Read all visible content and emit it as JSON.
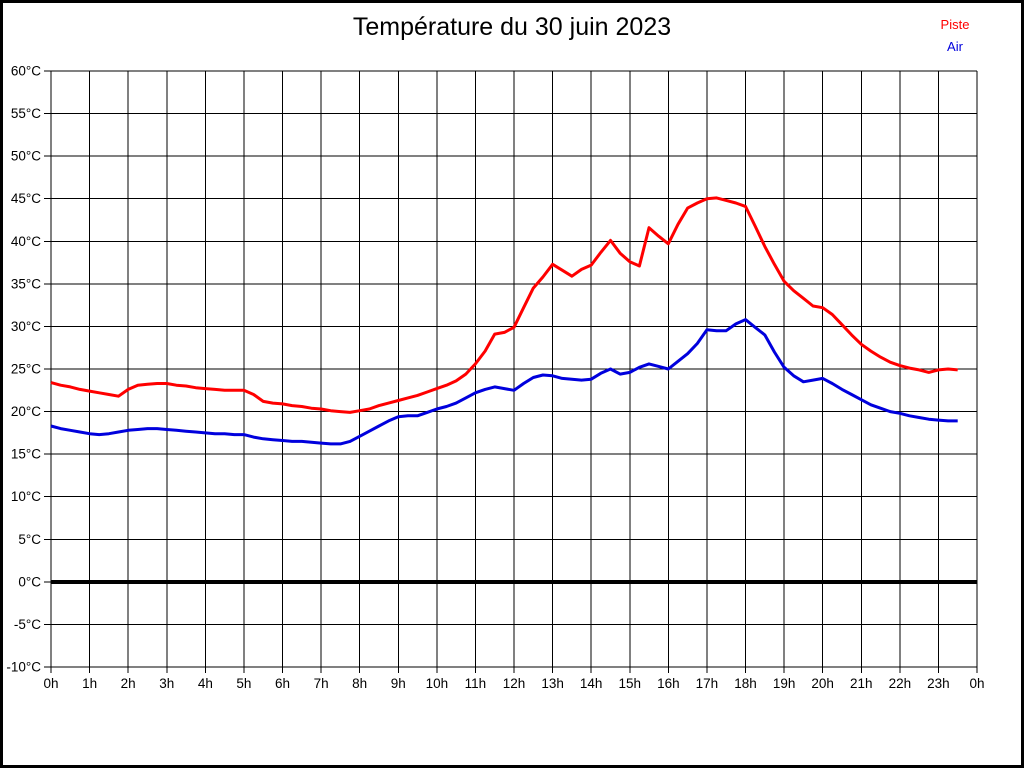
{
  "page": {
    "background": "#ffffff",
    "frame_color": "#000000"
  },
  "header": {
    "title": "Température du 30 juin 2023"
  },
  "legend": {
    "items": [
      {
        "label": "Piste",
        "color": "#ff0000"
      },
      {
        "label": "Air",
        "color": "#0000dd"
      }
    ]
  },
  "chart_data": {
    "type": "line",
    "title": "Température du 30 juin 2023",
    "xlabel": "",
    "ylabel": "",
    "grid": true,
    "legend_position": "top-right",
    "x_axis": {
      "unit": "h",
      "min": 0,
      "max": 24,
      "tick_step": 1,
      "tick_labels": [
        "0h",
        "1h",
        "2h",
        "3h",
        "4h",
        "5h",
        "6h",
        "7h",
        "8h",
        "9h",
        "10h",
        "11h",
        "12h",
        "13h",
        "14h",
        "15h",
        "16h",
        "17h",
        "18h",
        "19h",
        "20h",
        "21h",
        "22h",
        "23h",
        "0h"
      ]
    },
    "y_axis": {
      "unit": "°C",
      "min": -10,
      "max": 60,
      "tick_step": 5,
      "zero_line_bold": true,
      "tick_labels": [
        "60°C",
        "55°C",
        "50°C",
        "45°C",
        "40°C",
        "35°C",
        "30°C",
        "25°C",
        "20°C",
        "15°C",
        "10°C",
        "5°C",
        "0°C",
        "-5°C",
        "-10°C"
      ]
    },
    "series": [
      {
        "name": "Piste",
        "color": "#ff0000",
        "points": [
          [
            0,
            23.4
          ],
          [
            0.25,
            23.1
          ],
          [
            0.5,
            22.9
          ],
          [
            0.75,
            22.6
          ],
          [
            1,
            22.4
          ],
          [
            1.25,
            22.2
          ],
          [
            1.5,
            22
          ],
          [
            1.75,
            21.8
          ],
          [
            2,
            22.6
          ],
          [
            2.25,
            23.1
          ],
          [
            2.5,
            23.2
          ],
          [
            2.75,
            23.3
          ],
          [
            3,
            23.3
          ],
          [
            3.25,
            23.1
          ],
          [
            3.5,
            23
          ],
          [
            3.75,
            22.8
          ],
          [
            4,
            22.7
          ],
          [
            4.25,
            22.6
          ],
          [
            4.5,
            22.5
          ],
          [
            4.75,
            22.5
          ],
          [
            5,
            22.5
          ],
          [
            5.25,
            22
          ],
          [
            5.5,
            21.2
          ],
          [
            5.75,
            21
          ],
          [
            6,
            20.9
          ],
          [
            6.25,
            20.7
          ],
          [
            6.5,
            20.6
          ],
          [
            6.75,
            20.4
          ],
          [
            7,
            20.3
          ],
          [
            7.25,
            20.1
          ],
          [
            7.5,
            20
          ],
          [
            7.75,
            19.9
          ],
          [
            8,
            20.1
          ],
          [
            8.25,
            20.3
          ],
          [
            8.5,
            20.7
          ],
          [
            8.75,
            21
          ],
          [
            9,
            21.3
          ],
          [
            9.25,
            21.6
          ],
          [
            9.5,
            21.9
          ],
          [
            9.75,
            22.3
          ],
          [
            10,
            22.7
          ],
          [
            10.25,
            23.1
          ],
          [
            10.5,
            23.6
          ],
          [
            10.75,
            24.4
          ],
          [
            11,
            25.6
          ],
          [
            11.25,
            27.1
          ],
          [
            11.5,
            29.1
          ],
          [
            11.75,
            29.3
          ],
          [
            12,
            29.9
          ],
          [
            12.25,
            32.2
          ],
          [
            12.5,
            34.5
          ],
          [
            12.75,
            35.8
          ],
          [
            13,
            37.3
          ],
          [
            13.25,
            36.6
          ],
          [
            13.5,
            35.9
          ],
          [
            13.75,
            36.7
          ],
          [
            14,
            37.2
          ],
          [
            14.25,
            38.7
          ],
          [
            14.5,
            40.1
          ],
          [
            14.75,
            38.6
          ],
          [
            15,
            37.6
          ],
          [
            15.25,
            37.1
          ],
          [
            15.5,
            41.6
          ],
          [
            15.75,
            40.6
          ],
          [
            16,
            39.7
          ],
          [
            16.25,
            42
          ],
          [
            16.5,
            43.9
          ],
          [
            16.75,
            44.5
          ],
          [
            17,
            45
          ],
          [
            17.25,
            45.1
          ],
          [
            17.5,
            44.8
          ],
          [
            17.75,
            44.5
          ],
          [
            18,
            44.1
          ],
          [
            18.25,
            41.8
          ],
          [
            18.5,
            39.4
          ],
          [
            18.75,
            37.3
          ],
          [
            19,
            35.3
          ],
          [
            19.25,
            34.2
          ],
          [
            19.5,
            33.3
          ],
          [
            19.75,
            32.4
          ],
          [
            20,
            32.2
          ],
          [
            20.25,
            31.4
          ],
          [
            20.5,
            30.2
          ],
          [
            20.75,
            29
          ],
          [
            21,
            27.9
          ],
          [
            21.25,
            27.1
          ],
          [
            21.5,
            26.4
          ],
          [
            21.75,
            25.8
          ],
          [
            22,
            25.4
          ],
          [
            22.25,
            25.1
          ],
          [
            22.5,
            24.9
          ],
          [
            22.75,
            24.6
          ],
          [
            23,
            24.9
          ],
          [
            23.25,
            25
          ],
          [
            23.5,
            24.9
          ]
        ]
      },
      {
        "name": "Air",
        "color": "#0000dd",
        "points": [
          [
            0,
            18.3
          ],
          [
            0.25,
            18
          ],
          [
            0.5,
            17.8
          ],
          [
            0.75,
            17.6
          ],
          [
            1,
            17.4
          ],
          [
            1.25,
            17.3
          ],
          [
            1.5,
            17.4
          ],
          [
            1.75,
            17.6
          ],
          [
            2,
            17.8
          ],
          [
            2.25,
            17.9
          ],
          [
            2.5,
            18
          ],
          [
            2.75,
            18
          ],
          [
            3,
            17.9
          ],
          [
            3.25,
            17.8
          ],
          [
            3.5,
            17.7
          ],
          [
            3.75,
            17.6
          ],
          [
            4,
            17.5
          ],
          [
            4.25,
            17.4
          ],
          [
            4.5,
            17.4
          ],
          [
            4.75,
            17.3
          ],
          [
            5,
            17.3
          ],
          [
            5.25,
            17
          ],
          [
            5.5,
            16.8
          ],
          [
            5.75,
            16.7
          ],
          [
            6,
            16.6
          ],
          [
            6.25,
            16.5
          ],
          [
            6.5,
            16.5
          ],
          [
            6.75,
            16.4
          ],
          [
            7,
            16.3
          ],
          [
            7.25,
            16.2
          ],
          [
            7.5,
            16.2
          ],
          [
            7.75,
            16.5
          ],
          [
            8,
            17.1
          ],
          [
            8.25,
            17.7
          ],
          [
            8.5,
            18.3
          ],
          [
            8.75,
            18.9
          ],
          [
            9,
            19.4
          ],
          [
            9.25,
            19.5
          ],
          [
            9.5,
            19.5
          ],
          [
            9.75,
            19.9
          ],
          [
            10,
            20.3
          ],
          [
            10.25,
            20.6
          ],
          [
            10.5,
            21
          ],
          [
            10.75,
            21.6
          ],
          [
            11,
            22.2
          ],
          [
            11.25,
            22.6
          ],
          [
            11.5,
            22.9
          ],
          [
            11.75,
            22.7
          ],
          [
            12,
            22.5
          ],
          [
            12.25,
            23.3
          ],
          [
            12.5,
            24
          ],
          [
            12.75,
            24.3
          ],
          [
            13,
            24.2
          ],
          [
            13.25,
            23.9
          ],
          [
            13.5,
            23.8
          ],
          [
            13.75,
            23.7
          ],
          [
            14,
            23.8
          ],
          [
            14.25,
            24.5
          ],
          [
            14.5,
            25
          ],
          [
            14.75,
            24.4
          ],
          [
            15,
            24.6
          ],
          [
            15.25,
            25.2
          ],
          [
            15.5,
            25.6
          ],
          [
            15.75,
            25.3
          ],
          [
            16,
            25
          ],
          [
            16.25,
            25.9
          ],
          [
            16.5,
            26.8
          ],
          [
            16.75,
            28
          ],
          [
            17,
            29.6
          ],
          [
            17.25,
            29.5
          ],
          [
            17.5,
            29.5
          ],
          [
            17.75,
            30.3
          ],
          [
            18,
            30.8
          ],
          [
            18.25,
            29.9
          ],
          [
            18.5,
            29
          ],
          [
            18.75,
            27
          ],
          [
            19,
            25.2
          ],
          [
            19.25,
            24.2
          ],
          [
            19.5,
            23.5
          ],
          [
            19.75,
            23.7
          ],
          [
            20,
            23.9
          ],
          [
            20.25,
            23.3
          ],
          [
            20.5,
            22.6
          ],
          [
            20.75,
            22
          ],
          [
            21,
            21.4
          ],
          [
            21.25,
            20.8
          ],
          [
            21.5,
            20.4
          ],
          [
            21.75,
            20
          ],
          [
            22,
            19.8
          ],
          [
            22.25,
            19.5
          ],
          [
            22.5,
            19.3
          ],
          [
            22.75,
            19.1
          ],
          [
            23,
            19
          ],
          [
            23.25,
            18.9
          ],
          [
            23.5,
            18.9
          ]
        ]
      }
    ]
  }
}
